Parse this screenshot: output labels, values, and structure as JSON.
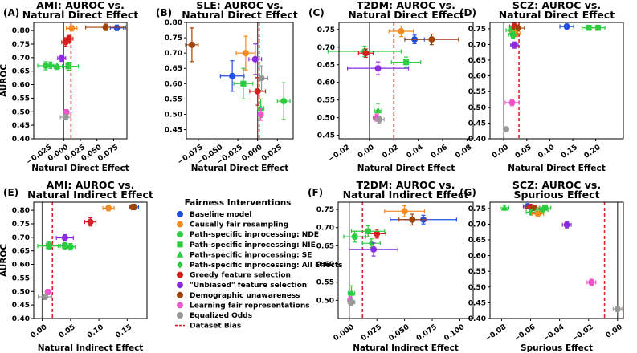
{
  "legend": {
    "title": "Fairness Interventions",
    "entries": [
      {
        "name": "Baseline model",
        "color": "#1f4fe0",
        "marker": "circle"
      },
      {
        "name": "Causally fair resampling",
        "color": "#f58a1f",
        "marker": "circle"
      },
      {
        "name": "Path-specific inprocessing: NDE",
        "color": "#2ecc40",
        "marker": "circle"
      },
      {
        "name": "Path-specific inprocessing: NIE",
        "color": "#2ecc40",
        "marker": "square"
      },
      {
        "name": "Path-specific inprocessing: SE",
        "color": "#2ecc40",
        "marker": "triangle"
      },
      {
        "name": "Path-specific inprocessing: All Effects",
        "color": "#2ecc40",
        "marker": "diamond"
      },
      {
        "name": "Greedy feature selection",
        "color": "#d62020",
        "marker": "circle"
      },
      {
        "name": "\"Unbiased\" feature selection",
        "color": "#8a2be2",
        "marker": "circle"
      },
      {
        "name": "Demographic unawareness",
        "color": "#a0450a",
        "marker": "circle"
      },
      {
        "name": "Learning fair representations",
        "color": "#ee55cc",
        "marker": "circle"
      },
      {
        "name": "Equalized Odds",
        "color": "#999999",
        "marker": "circle"
      },
      {
        "name": "Dataset Bias",
        "color": "#e0202a",
        "marker": "dashed-line"
      }
    ]
  },
  "chart_data": [
    {
      "type": "scatter",
      "panel": "(A)",
      "title": "AMI: AUROC vs.\nNatural Direct Effect",
      "xlabel": "Natural Direct Effect",
      "ylabel": "AUROC",
      "xlim": [
        -0.045,
        0.095
      ],
      "ylim": [
        0.4,
        0.83
      ],
      "xticks": [
        -0.025,
        0.0,
        0.025,
        0.05,
        0.075
      ],
      "yticks": [
        0.4,
        0.45,
        0.5,
        0.55,
        0.6,
        0.65,
        0.7,
        0.75,
        0.8
      ],
      "zero_line": 0,
      "dataset_bias": 0.011,
      "points": [
        {
          "g": 0,
          "x": 0.08,
          "y": 0.81,
          "xe": 0.01,
          "ye": 0.01
        },
        {
          "g": 1,
          "x": 0.012,
          "y": 0.808,
          "xe": 0.008,
          "ye": 0.01
        },
        {
          "g": 8,
          "x": 0.063,
          "y": 0.812,
          "xe": 0.03,
          "ye": 0.012
        },
        {
          "g": 6,
          "x": 0.003,
          "y": 0.757,
          "xe": 0.006,
          "ye": 0.015
        },
        {
          "g": 6,
          "x": 0.008,
          "y": 0.77,
          "xe": 0.006,
          "ye": 0.012
        },
        {
          "g": 7,
          "x": -0.003,
          "y": 0.698,
          "xe": 0.006,
          "ye": 0.012
        },
        {
          "g": 2,
          "x": -0.027,
          "y": 0.67,
          "xe": 0.012,
          "ye": 0.015
        },
        {
          "g": 3,
          "x": 0.007,
          "y": 0.668,
          "xe": 0.015,
          "ye": 0.015
        },
        {
          "g": 4,
          "x": -0.01,
          "y": 0.668,
          "xe": 0.008,
          "ye": 0.012
        },
        {
          "g": 5,
          "x": -0.02,
          "y": 0.672,
          "xe": 0.01,
          "ye": 0.012
        },
        {
          "g": 9,
          "x": 0.004,
          "y": 0.498,
          "xe": 0.004,
          "ye": 0.01
        },
        {
          "g": 10,
          "x": 0.003,
          "y": 0.48,
          "xe": 0.008,
          "ye": 0.01
        }
      ]
    },
    {
      "type": "scatter",
      "panel": "(B)",
      "title": "SLE: AUROC vs.\nNatural Direct Effect",
      "xlabel": "Natural Direct Effect",
      "ylabel": "",
      "xlim": [
        -0.09,
        0.045
      ],
      "ylim": [
        0.42,
        0.8
      ],
      "xticks": [
        -0.075,
        -0.05,
        -0.025,
        0.0,
        0.025
      ],
      "yticks": [
        0.45,
        0.5,
        0.55,
        0.6,
        0.65,
        0.7,
        0.75,
        0.8
      ],
      "zero_line": 0,
      "dataset_bias": 0.002,
      "points": [
        {
          "g": 8,
          "x": -0.083,
          "y": 0.727,
          "xe": 0.008,
          "ye": 0.055
        },
        {
          "g": 1,
          "x": -0.015,
          "y": 0.7,
          "xe": 0.012,
          "ye": 0.055
        },
        {
          "g": 7,
          "x": -0.003,
          "y": 0.68,
          "xe": 0.008,
          "ye": 0.05
        },
        {
          "g": 0,
          "x": -0.032,
          "y": 0.625,
          "xe": 0.015,
          "ye": 0.05
        },
        {
          "g": 3,
          "x": -0.018,
          "y": 0.6,
          "xe": 0.012,
          "ye": 0.05
        },
        {
          "g": 10,
          "x": 0.005,
          "y": 0.618,
          "xe": 0.008,
          "ye": 0.04
        },
        {
          "g": 6,
          "x": 0.0,
          "y": 0.575,
          "xe": 0.01,
          "ye": 0.045
        },
        {
          "g": 2,
          "x": 0.033,
          "y": 0.543,
          "xe": 0.008,
          "ye": 0.06
        },
        {
          "g": 4,
          "x": 0.004,
          "y": 0.52,
          "xe": 0.004,
          "ye": 0.03
        },
        {
          "g": 9,
          "x": 0.004,
          "y": 0.5,
          "xe": 0.003,
          "ye": 0.02
        }
      ]
    },
    {
      "type": "scatter",
      "panel": "(C)",
      "title": "T2DM: AUROC vs.\nNatural Direct Effect",
      "xlabel": "Natural Direct Effect",
      "ylabel": "",
      "xlim": [
        -0.025,
        0.085
      ],
      "ylim": [
        0.44,
        0.77
      ],
      "xticks": [
        -0.02,
        0.0,
        0.02,
        0.04,
        0.06,
        0.08
      ],
      "yticks": [
        0.45,
        0.5,
        0.55,
        0.6,
        0.65,
        0.7,
        0.75
      ],
      "zero_line": 0,
      "dataset_bias": 0.02,
      "points": [
        {
          "g": 1,
          "x": 0.026,
          "y": 0.745,
          "xe": 0.01,
          "ye": 0.015
        },
        {
          "g": 0,
          "x": 0.037,
          "y": 0.722,
          "xe": 0.008,
          "ye": 0.012
        },
        {
          "g": 8,
          "x": 0.051,
          "y": 0.722,
          "xe": 0.022,
          "ye": 0.015
        },
        {
          "g": 2,
          "x": -0.004,
          "y": 0.688,
          "xe": 0.03,
          "ye": 0.015
        },
        {
          "g": 6,
          "x": -0.003,
          "y": 0.683,
          "xe": 0.006,
          "ye": 0.012
        },
        {
          "g": 3,
          "x": 0.03,
          "y": 0.657,
          "xe": 0.012,
          "ye": 0.015
        },
        {
          "g": 7,
          "x": 0.007,
          "y": 0.64,
          "xe": 0.025,
          "ye": 0.018
        },
        {
          "g": 4,
          "x": 0.007,
          "y": 0.52,
          "xe": 0.003,
          "ye": 0.02
        },
        {
          "g": 9,
          "x": 0.006,
          "y": 0.5,
          "xe": 0.003,
          "ye": 0.01
        },
        {
          "g": 10,
          "x": 0.008,
          "y": 0.495,
          "xe": 0.004,
          "ye": 0.01
        }
      ]
    },
    {
      "type": "scatter",
      "panel": "(D)",
      "title": "SCZ: AUROC vs.\nNatural Direct Effect",
      "xlabel": "Natural Direct Effect",
      "ylabel": "",
      "xlim": [
        -0.03,
        0.26
      ],
      "ylim": [
        0.4,
        0.77
      ],
      "xticks": [
        0.0,
        0.05,
        0.1,
        0.15,
        0.2
      ],
      "yticks": [
        0.4,
        0.45,
        0.5,
        0.55,
        0.6,
        0.65,
        0.7,
        0.75
      ],
      "zero_line": 0,
      "dataset_bias": 0.033,
      "points": [
        {
          "g": 0,
          "x": 0.137,
          "y": 0.757,
          "xe": 0.015,
          "ye": 0.008
        },
        {
          "g": 3,
          "x": 0.185,
          "y": 0.753,
          "xe": 0.015,
          "ye": 0.008
        },
        {
          "g": 3,
          "x": 0.205,
          "y": 0.753,
          "xe": 0.015,
          "ye": 0.008
        },
        {
          "g": 6,
          "x": 0.023,
          "y": 0.757,
          "xe": 0.01,
          "ye": 0.01
        },
        {
          "g": 8,
          "x": 0.03,
          "y": 0.752,
          "xe": 0.015,
          "ye": 0.01
        },
        {
          "g": 5,
          "x": 0.015,
          "y": 0.745,
          "xe": 0.01,
          "ye": 0.01
        },
        {
          "g": 1,
          "x": 0.025,
          "y": 0.735,
          "xe": 0.01,
          "ye": 0.01
        },
        {
          "g": 2,
          "x": 0.02,
          "y": 0.73,
          "xe": 0.01,
          "ye": 0.01
        },
        {
          "g": 7,
          "x": 0.023,
          "y": 0.698,
          "xe": 0.008,
          "ye": 0.01
        },
        {
          "g": 9,
          "x": 0.018,
          "y": 0.515,
          "xe": 0.015,
          "ye": 0.01
        },
        {
          "g": 10,
          "x": 0.005,
          "y": 0.43,
          "xe": 0.004,
          "ye": 0.008
        }
      ]
    },
    {
      "type": "scatter",
      "panel": "(E)",
      "title": "AMI: AUROC vs.\nNatural Indirect Effect",
      "xlabel": "Natural Indirect Effect",
      "ylabel": "AUROC",
      "xlim": [
        -0.015,
        0.185
      ],
      "ylim": [
        0.4,
        0.83
      ],
      "xticks": [
        0.0,
        0.05,
        0.1,
        0.15
      ],
      "yticks": [
        0.4,
        0.45,
        0.5,
        0.55,
        0.6,
        0.65,
        0.7,
        0.75,
        0.8
      ],
      "zero_line": 0,
      "dataset_bias": 0.018,
      "points": [
        {
          "g": 0,
          "x": 0.162,
          "y": 0.812,
          "xe": 0.008,
          "ye": 0.01
        },
        {
          "g": 8,
          "x": 0.16,
          "y": 0.812,
          "xe": 0.006,
          "ye": 0.01
        },
        {
          "g": 1,
          "x": 0.117,
          "y": 0.808,
          "xe": 0.01,
          "ye": 0.01
        },
        {
          "g": 6,
          "x": 0.085,
          "y": 0.757,
          "xe": 0.01,
          "ye": 0.015
        },
        {
          "g": 7,
          "x": 0.04,
          "y": 0.698,
          "xe": 0.015,
          "ye": 0.012
        },
        {
          "g": 3,
          "x": 0.04,
          "y": 0.668,
          "xe": 0.012,
          "ye": 0.012
        },
        {
          "g": 2,
          "x": 0.05,
          "y": 0.665,
          "xe": 0.008,
          "ye": 0.012
        },
        {
          "g": 4,
          "x": 0.012,
          "y": 0.668,
          "xe": 0.02,
          "ye": 0.012
        },
        {
          "g": 5,
          "x": 0.012,
          "y": 0.672,
          "xe": 0.005,
          "ye": 0.012
        },
        {
          "g": 9,
          "x": 0.01,
          "y": 0.498,
          "xe": 0.004,
          "ye": 0.01
        },
        {
          "g": 10,
          "x": 0.005,
          "y": 0.48,
          "xe": 0.012,
          "ye": 0.01
        }
      ]
    },
    {
      "type": "scatter",
      "panel": "(F)",
      "title": "T2DM: AUROC vs.\nNatural Indirect Effect",
      "xlabel": "Natural Indirect Effect",
      "ylabel": "",
      "xlim": [
        -0.01,
        0.112
      ],
      "ylim": [
        0.45,
        0.77
      ],
      "xticks": [
        0.0,
        0.025,
        0.05,
        0.075,
        0.1
      ],
      "yticks": [
        0.5,
        0.55,
        0.6,
        0.65,
        0.7,
        0.75
      ],
      "zero_line": 0,
      "dataset_bias": 0.012,
      "points": [
        {
          "g": 1,
          "x": 0.05,
          "y": 0.745,
          "xe": 0.018,
          "ye": 0.015
        },
        {
          "g": 0,
          "x": 0.067,
          "y": 0.722,
          "xe": 0.03,
          "ye": 0.012
        },
        {
          "g": 8,
          "x": 0.057,
          "y": 0.722,
          "xe": 0.012,
          "ye": 0.015
        },
        {
          "g": 6,
          "x": 0.025,
          "y": 0.683,
          "xe": 0.008,
          "ye": 0.012
        },
        {
          "g": 3,
          "x": 0.017,
          "y": 0.69,
          "xe": 0.015,
          "ye": 0.015
        },
        {
          "g": 2,
          "x": 0.005,
          "y": 0.675,
          "xe": 0.01,
          "ye": 0.015
        },
        {
          "g": 5,
          "x": 0.02,
          "y": 0.657,
          "xe": 0.008,
          "ye": 0.012
        },
        {
          "g": 7,
          "x": 0.022,
          "y": 0.64,
          "xe": 0.022,
          "ye": 0.018
        },
        {
          "g": 4,
          "x": 0.002,
          "y": 0.52,
          "xe": 0.003,
          "ye": 0.02
        },
        {
          "g": 9,
          "x": 0.001,
          "y": 0.5,
          "xe": 0.002,
          "ye": 0.01
        },
        {
          "g": 10,
          "x": 0.002,
          "y": 0.495,
          "xe": 0.003,
          "ye": 0.01
        }
      ]
    },
    {
      "type": "scatter",
      "panel": "(G)",
      "title": "SCZ: AUROC vs.\nSpurious Effect",
      "xlabel": "Spurious Effect",
      "ylabel": "",
      "xlim": [
        -0.088,
        0.004
      ],
      "ylim": [
        0.4,
        0.77
      ],
      "xticks": [
        -0.08,
        -0.06,
        -0.04,
        -0.02,
        0.0
      ],
      "yticks": [
        0.4,
        0.45,
        0.5,
        0.55,
        0.6,
        0.65,
        0.7,
        0.75
      ],
      "zero_line": 0,
      "dataset_bias": -0.009,
      "points": [
        {
          "g": 4,
          "x": -0.078,
          "y": 0.752,
          "xe": 0.003,
          "ye": 0.008
        },
        {
          "g": 0,
          "x": -0.062,
          "y": 0.757,
          "xe": 0.003,
          "ye": 0.008
        },
        {
          "g": 6,
          "x": -0.06,
          "y": 0.755,
          "xe": 0.004,
          "ye": 0.008
        },
        {
          "g": 8,
          "x": -0.058,
          "y": 0.752,
          "xe": 0.005,
          "ye": 0.008
        },
        {
          "g": 3,
          "x": -0.05,
          "y": 0.752,
          "xe": 0.004,
          "ye": 0.008
        },
        {
          "g": 2,
          "x": -0.052,
          "y": 0.745,
          "xe": 0.004,
          "ye": 0.008
        },
        {
          "g": 5,
          "x": -0.06,
          "y": 0.738,
          "xe": 0.003,
          "ye": 0.008
        },
        {
          "g": 1,
          "x": -0.055,
          "y": 0.733,
          "xe": 0.004,
          "ye": 0.008
        },
        {
          "g": 7,
          "x": -0.035,
          "y": 0.698,
          "xe": 0.003,
          "ye": 0.01
        },
        {
          "g": 9,
          "x": -0.018,
          "y": 0.515,
          "xe": 0.003,
          "ye": 0.01
        },
        {
          "g": 10,
          "x": 0.0,
          "y": 0.43,
          "xe": 0.003,
          "ye": 0.008
        }
      ]
    }
  ]
}
